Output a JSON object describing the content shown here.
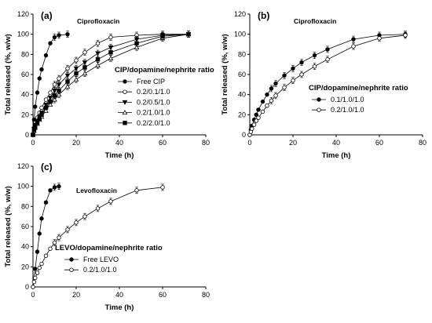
{
  "chart_data": [
    {
      "type": "line",
      "panel_label": "(a)",
      "annotation": "Ciprofloxacin",
      "legend_title": "CIP/dopamine/nephrite ratio",
      "xlabel": "Time (h)",
      "ylabel": "Total released (%, w/w)",
      "xlim": [
        0,
        80
      ],
      "ylim": [
        0,
        120
      ],
      "xticks": [
        "0",
        "20",
        "40",
        "60",
        "80"
      ],
      "yticks": [
        "0",
        "20",
        "40",
        "60",
        "80",
        "100",
        "120"
      ],
      "grid": false,
      "legend_position": "right",
      "series": [
        {
          "name": "Free CIP",
          "marker": "circle-filled",
          "x": [
            0,
            0.5,
            1,
            2,
            3,
            4,
            6,
            8,
            10,
            12,
            16
          ],
          "y": [
            0,
            15,
            28,
            42,
            56,
            65,
            79,
            91,
            97,
            99,
            100
          ]
        },
        {
          "name": "0.2/0.1/1.0",
          "marker": "circle-open",
          "x": [
            0,
            0.5,
            1,
            2,
            3,
            4,
            6,
            8,
            10,
            12,
            16,
            20,
            24,
            30,
            36,
            48,
            60,
            72
          ],
          "y": [
            0,
            7,
            12,
            17,
            22,
            27,
            35,
            42,
            50,
            56,
            66,
            74,
            82,
            91,
            97,
            99,
            100,
            100
          ]
        },
        {
          "name": "0.2/0.5/1.0",
          "marker": "triangle-down-filled",
          "x": [
            0,
            0.5,
            1,
            2,
            3,
            4,
            6,
            8,
            10,
            12,
            16,
            20,
            24,
            30,
            36,
            48,
            60,
            72
          ],
          "y": [
            0,
            6,
            10,
            14,
            18,
            22,
            30,
            37,
            44,
            50,
            59,
            66,
            72,
            81,
            87,
            95,
            99,
            100
          ]
        },
        {
          "name": "0.2/1.0/1.0",
          "marker": "triangle-up-open",
          "x": [
            0,
            0.5,
            1,
            2,
            3,
            4,
            6,
            8,
            10,
            12,
            16,
            20,
            24,
            30,
            36,
            48,
            60,
            72
          ],
          "y": [
            0,
            4,
            7,
            11,
            15,
            18,
            24,
            30,
            35,
            40,
            48,
            55,
            61,
            69,
            76,
            87,
            96,
            100
          ]
        },
        {
          "name": "0.2/2.0/1.0",
          "marker": "square-filled",
          "x": [
            0,
            0.5,
            1,
            2,
            3,
            4,
            6,
            8,
            10,
            12,
            16,
            20,
            24,
            30,
            36,
            48,
            60,
            72
          ],
          "y": [
            0,
            5,
            8,
            12,
            16,
            20,
            27,
            33,
            39,
            44,
            53,
            61,
            67,
            75,
            82,
            91,
            98,
            100
          ]
        }
      ]
    },
    {
      "type": "line",
      "panel_label": "(b)",
      "annotation": "Ciprofloxacin",
      "legend_title": "CIP/dopamine/nephrite ratio",
      "xlabel": "Time (h)",
      "ylabel": "Total released (%, w/w)",
      "xlim": [
        0,
        80
      ],
      "ylim": [
        0,
        120
      ],
      "xticks": [
        "0",
        "20",
        "40",
        "60",
        "80"
      ],
      "yticks": [
        "0",
        "20",
        "40",
        "60",
        "80",
        "100",
        "120"
      ],
      "grid": false,
      "legend_position": "right",
      "series": [
        {
          "name": "0.1/1.0/1.0",
          "marker": "circle-filled",
          "x": [
            0,
            0.5,
            1,
            2,
            3,
            4,
            6,
            8,
            10,
            12,
            16,
            20,
            24,
            30,
            36,
            48,
            60,
            72
          ],
          "y": [
            0,
            5,
            9,
            15,
            20,
            25,
            33,
            40,
            46,
            51,
            59,
            66,
            72,
            79,
            85,
            95,
            99,
            100
          ]
        },
        {
          "name": "0.2/1.0/1.0",
          "marker": "circle-open",
          "x": [
            0,
            0.5,
            1,
            2,
            3,
            4,
            6,
            8,
            10,
            12,
            16,
            20,
            24,
            30,
            36,
            48,
            60,
            72
          ],
          "y": [
            0,
            3,
            6,
            10,
            14,
            17,
            23,
            29,
            34,
            39,
            47,
            54,
            60,
            68,
            75,
            88,
            96,
            99
          ]
        }
      ]
    },
    {
      "type": "line",
      "panel_label": "(c)",
      "annotation": "Levofloxacin",
      "legend_title": "LEVO/dopamine/nephrite ratio",
      "xlabel": "Time (h)",
      "ylabel": "Total released (%, w/w)",
      "xlim": [
        0,
        80
      ],
      "ylim": [
        0,
        120
      ],
      "xticks": [
        "0",
        "20",
        "40",
        "60",
        "80"
      ],
      "yticks": [
        "0",
        "20",
        "40",
        "60",
        "80",
        "100",
        "120"
      ],
      "grid": false,
      "legend_position": "bottom-center",
      "series": [
        {
          "name": "Free LEVO",
          "marker": "circle-filled",
          "x": [
            0,
            1,
            2,
            3,
            4,
            6,
            8,
            10,
            12
          ],
          "y": [
            0,
            18,
            35,
            53,
            68,
            84,
            96,
            99,
            100
          ]
        },
        {
          "name": "0.2/1.0/1.0",
          "marker": "circle-open",
          "x": [
            0,
            0.5,
            1,
            2,
            3,
            4,
            6,
            8,
            10,
            12,
            16,
            20,
            24,
            30,
            36,
            48,
            60
          ],
          "y": [
            0,
            5,
            9,
            14,
            19,
            23,
            31,
            38,
            44,
            49,
            57,
            64,
            70,
            78,
            85,
            96,
            99
          ]
        }
      ]
    }
  ]
}
